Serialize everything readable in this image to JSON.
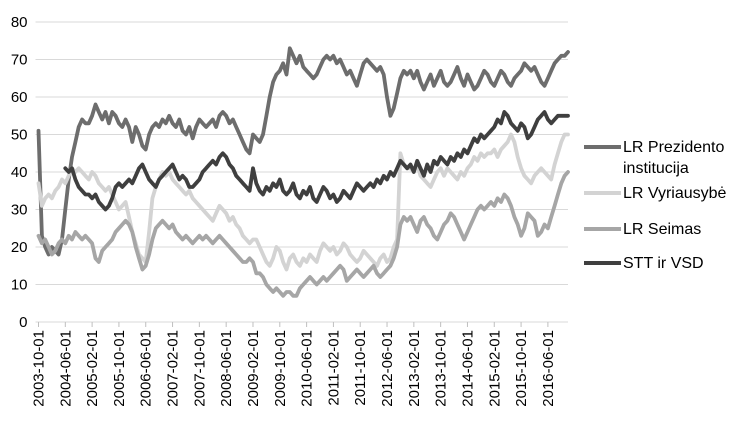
{
  "chart_data": {
    "type": "line",
    "title": "",
    "grid": "horizontal",
    "legend_position": "right",
    "x_axis": {
      "unit": "month",
      "start": "2003-10-01",
      "end": "2016-12-01",
      "tick_interval_months": 8,
      "label_rotation_deg": 90,
      "tick_labels": [
        "2003-10-01",
        "2004-06-01",
        "2005-02-01",
        "2005-10-01",
        "2006-06-01",
        "2007-02-01",
        "2007-10-01",
        "2008-06-01",
        "2009-02-01",
        "2009-10-01",
        "2010-06-01",
        "2011-02-01",
        "2011-10-01",
        "2012-06-01",
        "2013-02-01",
        "2013-10-01",
        "2014-06-01",
        "2015-02-01",
        "2015-10-01",
        "2016-06-01"
      ]
    },
    "y_axis": {
      "min": 0,
      "max": 80,
      "step": 10,
      "tick_labels": [
        "0",
        "10",
        "20",
        "30",
        "40",
        "50",
        "60",
        "70",
        "80"
      ]
    },
    "series": [
      {
        "name": "LR Prezidento institucija",
        "color": "#6d6d6d",
        "start_month_offset": 0,
        "values": [
          51,
          23,
          20,
          18,
          20,
          19,
          18,
          22,
          30,
          38,
          44,
          48,
          52,
          54,
          53,
          53,
          55,
          58,
          56,
          54,
          56,
          53,
          56,
          55,
          53,
          52,
          54,
          52,
          48,
          52,
          50,
          47,
          46,
          50,
          52,
          53,
          52,
          54,
          53,
          55,
          53,
          52,
          54,
          51,
          50,
          52,
          49,
          52,
          54,
          53,
          52,
          53,
          54,
          52,
          55,
          56,
          55,
          53,
          54,
          52,
          50,
          48,
          46,
          45,
          50,
          49,
          48,
          50,
          55,
          60,
          64,
          66,
          67,
          69,
          66,
          73,
          71,
          69,
          71,
          68,
          67,
          66,
          65,
          66,
          68,
          70,
          71,
          70,
          71,
          69,
          70,
          68,
          66,
          67,
          65,
          63,
          66,
          69,
          70,
          69,
          68,
          67,
          68,
          66,
          60,
          55,
          57,
          61,
          65,
          67,
          66,
          67,
          65,
          67,
          64,
          62,
          64,
          66,
          63,
          65,
          67,
          64,
          63,
          64,
          66,
          68,
          65,
          63,
          66,
          64,
          62,
          63,
          65,
          67,
          66,
          64,
          63,
          65,
          67,
          66,
          64,
          63,
          65,
          66,
          67,
          69,
          68,
          67,
          68,
          66,
          64,
          63,
          65,
          67,
          69,
          70,
          71,
          71,
          72
        ]
      },
      {
        "name": "LR Vyriausybė",
        "color": "#d3d3d3",
        "start_month_offset": 0,
        "values": [
          37,
          31,
          33,
          34,
          33,
          35,
          36,
          38,
          37,
          39,
          41,
          40,
          41,
          40,
          39,
          38,
          40,
          39,
          37,
          36,
          35,
          36,
          34,
          32,
          30,
          31,
          32,
          28,
          24,
          21,
          18,
          17,
          16,
          24,
          33,
          36,
          38,
          40,
          39,
          40,
          38,
          37,
          36,
          35,
          34,
          35,
          33,
          32,
          31,
          30,
          29,
          28,
          27,
          29,
          31,
          30,
          29,
          27,
          28,
          26,
          25,
          23,
          22,
          21,
          22,
          22,
          20,
          18,
          16,
          15,
          17,
          20,
          19,
          16,
          14,
          17,
          18,
          16,
          15,
          17,
          16,
          18,
          17,
          16,
          19,
          21,
          20,
          19,
          20,
          18,
          19,
          21,
          20,
          18,
          17,
          16,
          17,
          19,
          18,
          17,
          16,
          15,
          17,
          18,
          16,
          17,
          20,
          22,
          45,
          42,
          41,
          41,
          40,
          42,
          39,
          38,
          37,
          36,
          38,
          40,
          41,
          39,
          41,
          40,
          39,
          38,
          40,
          39,
          41,
          42,
          44,
          43,
          45,
          44,
          45,
          45,
          46,
          44,
          46,
          47,
          48,
          50,
          48,
          44,
          41,
          39,
          38,
          37,
          39,
          40,
          41,
          40,
          39,
          38,
          42,
          45,
          48,
          50,
          50
        ]
      },
      {
        "name": "LR Seimas",
        "color": "#a6a6a6",
        "start_month_offset": 0,
        "values": [
          23,
          21,
          22,
          20,
          18,
          19,
          21,
          22,
          21,
          23,
          22,
          24,
          23,
          22,
          23,
          22,
          21,
          17,
          16,
          19,
          20,
          21,
          22,
          24,
          25,
          26,
          27,
          26,
          24,
          20,
          17,
          14,
          15,
          18,
          22,
          25,
          26,
          27,
          26,
          25,
          26,
          24,
          23,
          22,
          23,
          22,
          21,
          22,
          23,
          22,
          23,
          22,
          21,
          22,
          23,
          22,
          21,
          20,
          19,
          18,
          17,
          16,
          16,
          17,
          16,
          13,
          13,
          12,
          10,
          9,
          8,
          9,
          8,
          7,
          8,
          8,
          7,
          7,
          9,
          10,
          11,
          12,
          11,
          10,
          11,
          12,
          11,
          12,
          13,
          14,
          15,
          14,
          11,
          12,
          13,
          14,
          13,
          12,
          13,
          14,
          15,
          13,
          12,
          13,
          14,
          15,
          17,
          20,
          26,
          28,
          27,
          28,
          26,
          24,
          27,
          28,
          26,
          25,
          23,
          22,
          24,
          26,
          27,
          29,
          28,
          26,
          24,
          22,
          24,
          26,
          28,
          30,
          31,
          30,
          31,
          32,
          31,
          33,
          32,
          34,
          33,
          31,
          28,
          26,
          23,
          25,
          29,
          28,
          27,
          23,
          24,
          26,
          25,
          28,
          31,
          34,
          37,
          39,
          40
        ]
      },
      {
        "name": "STT ir VSD",
        "color": "#3f3f3f",
        "start_month_offset": 8,
        "values": [
          41,
          40,
          41,
          38,
          36,
          35,
          34,
          34,
          33,
          34,
          32,
          31,
          30,
          31,
          33,
          36,
          37,
          36,
          37,
          38,
          37,
          39,
          41,
          42,
          40,
          38,
          37,
          36,
          38,
          39,
          40,
          41,
          42,
          40,
          38,
          39,
          38,
          36,
          36,
          37,
          38,
          40,
          41,
          42,
          43,
          42,
          44,
          45,
          44,
          42,
          41,
          39,
          38,
          37,
          36,
          35,
          41,
          37,
          35,
          34,
          36,
          35,
          37,
          36,
          38,
          35,
          34,
          35,
          37,
          34,
          33,
          35,
          34,
          36,
          33,
          32,
          34,
          36,
          35,
          33,
          34,
          32,
          33,
          35,
          34,
          33,
          35,
          37,
          36,
          35,
          36,
          37,
          36,
          38,
          37,
          39,
          38,
          40,
          39,
          41,
          43,
          42,
          41,
          42,
          40,
          43,
          41,
          39,
          42,
          40,
          43,
          42,
          44,
          43,
          42,
          44,
          43,
          45,
          44,
          46,
          45,
          47,
          49,
          48,
          50,
          49,
          50,
          51,
          52,
          54,
          53,
          56,
          55,
          53,
          52,
          51,
          53,
          52,
          49,
          50,
          52,
          54,
          55,
          56,
          54,
          53,
          54,
          55,
          55,
          55,
          55
        ]
      }
    ],
    "style": {
      "gridline_color": "#d9d9d9",
      "tick_color": "#bfbfbf",
      "line_width": 3.8,
      "background": "#ffffff"
    }
  }
}
